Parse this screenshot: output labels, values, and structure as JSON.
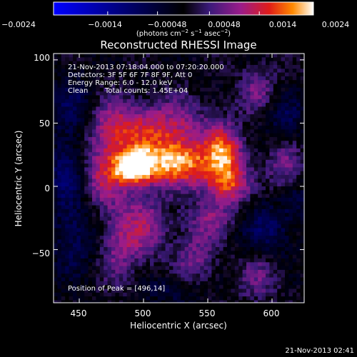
{
  "chart_data": {
    "type": "heatmap",
    "title": "Reconstructed RHESSI Image",
    "xlabel": "Heliocentric X (arcsec)",
    "ylabel": "Heliocentric Y (arcsec)",
    "xlim": [
      430,
      625
    ],
    "ylim": [
      -92,
      105
    ],
    "x_ticks": [
      "450",
      "500",
      "550",
      "600"
    ],
    "x_tick_values": [
      450,
      500,
      550,
      600
    ],
    "y_ticks": [
      "100",
      "50",
      "0",
      "−50"
    ],
    "y_tick_values": [
      100,
      50,
      0,
      -50
    ],
    "colorbar": {
      "range": [
        -0.0024,
        0.0024
      ],
      "ticks": [
        "−0.0024",
        "−0.0014",
        "−0.00048",
        "0.00048",
        "0.0014",
        "0.0024"
      ],
      "tick_values": [
        -0.0024,
        -0.0014,
        -0.00048,
        0.00048,
        0.0014,
        0.0024
      ],
      "units_main": "(photons cm",
      "units_sup1": "−2",
      "units_mid1": " s",
      "units_sup2": "−1",
      "units_mid2": " asec",
      "units_sup3": "−2",
      "units_end": ")",
      "colors": [
        "#0000ff",
        "#000000",
        "#3b1a7a",
        "#9a1c8a",
        "#e01c18",
        "#ff8a00",
        "#ffffff"
      ]
    },
    "info_lines": [
      "21-Nov-2013 07:18:04.000 to 07:20:20.000",
      "Detectors: 3F 5F 6F 7F 8F 9F, Att 0",
      "Energy Range: 6.0 - 12.0 keV"
    ],
    "clean_label": "Clean",
    "total_counts": "Total counts: 1.45E+04",
    "peak_label": "Position of Peak = [496,14]",
    "peak": [
      496,
      14
    ],
    "sources": [
      {
        "x": 492,
        "y": 15,
        "amp": 1.0,
        "sx": 10,
        "sy": 9
      },
      {
        "x": 525,
        "y": 18,
        "amp": 0.85,
        "sx": 22,
        "sy": 12
      },
      {
        "x": 563,
        "y": 25,
        "amp": 0.7,
        "sx": 10,
        "sy": 15
      },
      {
        "x": 565,
        "y": 0,
        "amp": 0.55,
        "sx": 12,
        "sy": 10
      },
      {
        "x": 515,
        "y": 45,
        "amp": 0.55,
        "sx": 25,
        "sy": 15
      },
      {
        "x": 475,
        "y": 42,
        "amp": 0.45,
        "sx": 14,
        "sy": 18
      },
      {
        "x": 468,
        "y": 5,
        "amp": 0.4,
        "sx": 12,
        "sy": 15
      },
      {
        "x": 500,
        "y": -30,
        "amp": 0.4,
        "sx": 12,
        "sy": 20
      },
      {
        "x": 480,
        "y": -45,
        "amp": 0.35,
        "sx": 10,
        "sy": 22
      },
      {
        "x": 540,
        "y": -55,
        "amp": 0.3,
        "sx": 12,
        "sy": 20
      },
      {
        "x": 555,
        "y": -25,
        "amp": 0.3,
        "sx": 14,
        "sy": 10
      },
      {
        "x": 610,
        "y": 15,
        "amp": 0.35,
        "sx": 10,
        "sy": 14
      },
      {
        "x": 590,
        "y": 75,
        "amp": 0.3,
        "sx": 12,
        "sy": 14
      },
      {
        "x": 590,
        "y": -70,
        "amp": 0.28,
        "sx": 12,
        "sy": 16
      },
      {
        "x": 445,
        "y": 60,
        "amp": -0.3,
        "sx": 12,
        "sy": 20
      },
      {
        "x": 440,
        "y": 10,
        "amp": -0.35,
        "sx": 10,
        "sy": 18
      },
      {
        "x": 445,
        "y": -40,
        "amp": -0.3,
        "sx": 12,
        "sy": 22
      },
      {
        "x": 610,
        "y": 55,
        "amp": -0.3,
        "sx": 12,
        "sy": 14
      },
      {
        "x": 595,
        "y": -35,
        "amp": -0.35,
        "sx": 15,
        "sy": 16
      },
      {
        "x": 525,
        "y": -82,
        "amp": -0.25,
        "sx": 18,
        "sy": 8
      },
      {
        "x": 620,
        "y": -10,
        "amp": -0.2,
        "sx": 8,
        "sy": 12
      }
    ]
  },
  "footer_timestamp": "21-Nov-2013 02:41"
}
